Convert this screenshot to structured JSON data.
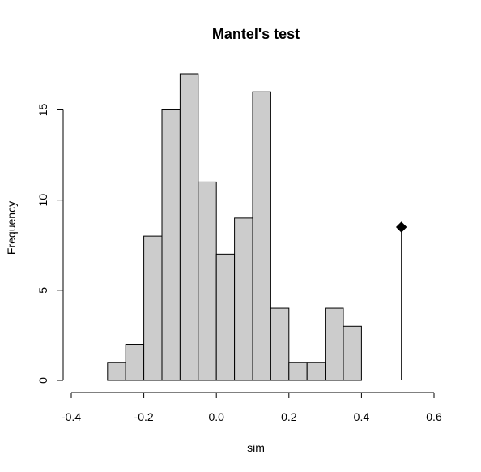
{
  "chart_data": {
    "type": "histogram",
    "title": "Mantel's test",
    "xlabel": "sim",
    "ylabel": "Frequency",
    "xlim": [
      -0.4,
      0.6
    ],
    "ylim": [
      0,
      17
    ],
    "x_ticks": [
      "-0.4",
      "-0.2",
      "0.0",
      "0.2",
      "0.4",
      "0.6"
    ],
    "y_ticks": [
      "0",
      "5",
      "10",
      "15"
    ],
    "bin_width": 0.05,
    "bins": [
      {
        "start": -0.3,
        "end": -0.25,
        "count": 1
      },
      {
        "start": -0.25,
        "end": -0.2,
        "count": 2
      },
      {
        "start": -0.2,
        "end": -0.15,
        "count": 8
      },
      {
        "start": -0.15,
        "end": -0.1,
        "count": 15
      },
      {
        "start": -0.1,
        "end": -0.05,
        "count": 17
      },
      {
        "start": -0.05,
        "end": 0.0,
        "count": 11
      },
      {
        "start": 0.0,
        "end": 0.05,
        "count": 7
      },
      {
        "start": 0.05,
        "end": 0.1,
        "count": 9
      },
      {
        "start": 0.1,
        "end": 0.15,
        "count": 16
      },
      {
        "start": 0.15,
        "end": 0.2,
        "count": 4
      },
      {
        "start": 0.2,
        "end": 0.25,
        "count": 1
      },
      {
        "start": 0.25,
        "end": 0.3,
        "count": 1
      },
      {
        "start": 0.3,
        "end": 0.35,
        "count": 4
      },
      {
        "start": 0.35,
        "end": 0.4,
        "count": 3
      }
    ],
    "observed": {
      "x": 0.51,
      "y": 8.5
    },
    "bar_color": "#cccccc",
    "grid": false
  }
}
